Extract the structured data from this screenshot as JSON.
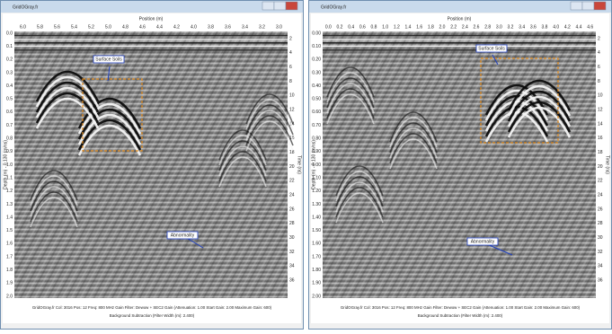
{
  "windows": [
    {
      "title": "GridOGray.fr",
      "x_axis_label": "Position (m)",
      "x_ticks": [
        "6.0",
        "5.8",
        "5.6",
        "5.4",
        "5.2",
        "5.0",
        "4.8",
        "4.6",
        "4.4",
        "4.2",
        "4.0",
        "3.8",
        "3.6",
        "3.4",
        "3.2",
        "3.0"
      ],
      "y_axis_label": "Depth (m) - 0.130 (m/ns)",
      "y_ticks": [
        "0.0",
        "0.1",
        "0.2",
        "0.3",
        "0.4",
        "0.5",
        "0.6",
        "0.7",
        "0.8",
        "0.9",
        "1.0",
        "1.1",
        "1.2",
        "1.3",
        "1.4",
        "1.5",
        "1.6",
        "1.7",
        "1.8",
        "1.9",
        "2.0"
      ],
      "right_axis_label": "Time (ns)",
      "right_ticks": [
        "2",
        "4",
        "6",
        "8",
        "10",
        "12",
        "14",
        "16",
        "18",
        "20",
        "22",
        "24",
        "26",
        "28",
        "30",
        "32",
        "34",
        "36"
      ],
      "annotations": [
        "Surface Soils",
        "Abnormality"
      ],
      "footer": [
        "GridOGray.fr  Col: 3016  Pos: 12  Freq: 800 MHz  Gain Filter: Dewow + SEC2 Gain (Attenuation: 1.00  Start Gain: 2.00  Maximum Gain: 600)",
        "Background Subtraction (Filter Width (m): 2.400)"
      ]
    },
    {
      "title": "GridOGray.fr",
      "x_axis_label": "Position (m)",
      "x_ticks": [
        "0.0",
        "0.2",
        "0.4",
        "0.6",
        "0.8",
        "1.0",
        "1.2",
        "1.4",
        "1.6",
        "1.8",
        "2.0",
        "2.2",
        "2.4",
        "2.6",
        "2.8",
        "3.0",
        "3.2",
        "3.4",
        "3.6",
        "3.8",
        "4.0",
        "4.2",
        "4.4",
        "4.6"
      ],
      "y_axis_label": "Depth (m) - 0.130 (m/ns)",
      "y_ticks": [
        "0.00",
        "0.10",
        "0.20",
        "0.30",
        "0.40",
        "0.50",
        "0.60",
        "0.70",
        "0.80",
        "0.90",
        "1.00",
        "1.10",
        "1.20",
        "1.30",
        "1.40",
        "1.50",
        "1.60",
        "1.70",
        "1.80",
        "1.90",
        "2.00"
      ],
      "right_axis_label": "Time (ns)",
      "right_ticks": [
        "2",
        "4",
        "6",
        "8",
        "10",
        "12",
        "14",
        "16",
        "18",
        "20",
        "22",
        "24",
        "26",
        "28",
        "30",
        "32",
        "34",
        "36"
      ],
      "annotations": [
        "Surface Soils",
        "Abnormality"
      ],
      "footer": [
        "GridOGray.fr  Col: 3016  Pos: 12  Freq: 800 MHz  Gain Filter: Dewow + SEC2 Gain (Attenuation: 1.00  Start Gain: 2.00  Maximum Gain: 600)",
        "Background Subtraction (Filter Width (m): 2.400)"
      ]
    }
  ]
}
